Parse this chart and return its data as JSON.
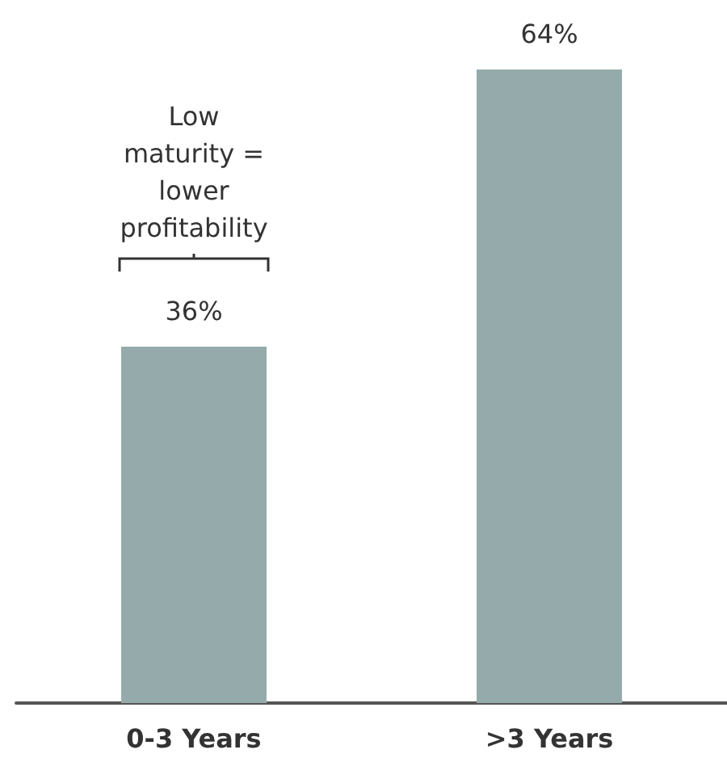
{
  "chart_data": {
    "type": "bar",
    "categories": [
      "0-3 Years",
      ">3 Years"
    ],
    "values": [
      36,
      64
    ],
    "color": "#95abab",
    "value_labels": [
      "36%",
      "64%"
    ],
    "annotations": [
      "Low\nmaturity =\nlower\nprofitability"
    ]
  }
}
